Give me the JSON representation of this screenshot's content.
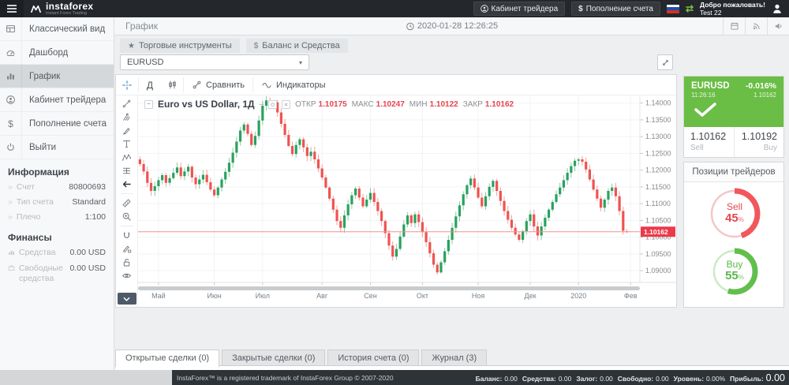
{
  "topbar": {
    "brand": "instaforex",
    "brand_sub": "Instant Forex Trading",
    "cabinet_button": "Кабинет трейдера",
    "deposit_button": "Пополнение счета",
    "deposit_symbol": "$",
    "welcome_line1": "Добро пожаловать!",
    "welcome_line2": "Test 22"
  },
  "sidebar": {
    "items": [
      {
        "label": "Классический вид",
        "icon": "classic-view-icon",
        "active": false
      },
      {
        "label": "Дашборд",
        "icon": "dashboard-icon",
        "active": false
      },
      {
        "label": "График",
        "icon": "chart-icon",
        "active": true
      },
      {
        "label": "Кабинет трейдера",
        "icon": "trader-cabinet-icon",
        "active": false
      },
      {
        "label": "Пополнение счета",
        "icon": "deposit-icon",
        "active": false
      },
      {
        "label": "Выйти",
        "icon": "logout-icon",
        "active": false
      }
    ],
    "info_title": "Информация",
    "info_rows": [
      {
        "label": "Счет",
        "value": "80800693"
      },
      {
        "label": "Тип счета",
        "value": "Standard"
      },
      {
        "label": "Плечо",
        "value": "1:100"
      }
    ],
    "finance_title": "Финансы",
    "finance_rows": [
      {
        "label": "Средства",
        "value": "0.00 USD"
      },
      {
        "label": "Свободные средства",
        "value": "0.00 USD"
      }
    ]
  },
  "main": {
    "page_title": "График",
    "datetime": "2020-01-28 12:26:25",
    "instruments_button": "Торговые инструменты",
    "instruments_glyph": "★",
    "balance_button": "Баланс и Средства",
    "balance_glyph": "$",
    "symbol_select": "EURUSD",
    "select_caret": "▾",
    "chart_toolbar": {
      "interval": "Д",
      "compare": "Сравнить",
      "indicators": "Индикаторы"
    },
    "legend": {
      "collapse_glyph": "−",
      "title": "Euro vs US Dollar, 1Д",
      "dash": "–",
      "open_label": "ОТКР",
      "open": "1.10175",
      "high_label": "МАКС",
      "high": "1.10247",
      "low_label": "МИН",
      "low": "1.10122",
      "close_label": "ЗАКР",
      "close": "1.10162"
    },
    "tabs": [
      {
        "label": "Открытые сделки (0)",
        "active": true
      },
      {
        "label": "Закрытые сделки (0)",
        "active": false
      },
      {
        "label": "История счета (0)",
        "active": false
      },
      {
        "label": "Журнал (3)",
        "active": false
      }
    ]
  },
  "quote": {
    "symbol": "EURUSD",
    "change": "-0.016%",
    "time": "11:26:16",
    "price": "1.10162",
    "sell_price": "1.10162",
    "sell_label": "Sell",
    "buy_price": "1.10192",
    "buy_label": "Buy"
  },
  "positions": {
    "title": "Позиции трейдеров",
    "sell_label": "Sell",
    "sell_pct": 45,
    "buy_label": "Buy",
    "buy_pct": 55,
    "pct_symbol": "%",
    "sell_color": "#f1575c",
    "sell_track": "#f5c6c7",
    "buy_color": "#62bf4e",
    "buy_track": "#cdeac2"
  },
  "statusbar": {
    "copyright": "InstaForex™ is a registered trademark of InstaForex Group © 2007-2020",
    "items": [
      {
        "label": "Баланс:",
        "value": "0.00"
      },
      {
        "label": "Средства:",
        "value": "0.00"
      },
      {
        "label": "Залог:",
        "value": "0.00"
      },
      {
        "label": "Свободно:",
        "value": "0.00"
      },
      {
        "label": "Уровень:",
        "value": "0.00%"
      },
      {
        "label": "Прибыль:",
        "value": "0.00"
      }
    ]
  },
  "chart_data": {
    "type": "candlestick",
    "title": "Euro vs US Dollar, 1Д",
    "symbol": "EURUSD",
    "interval": "1Д",
    "ohlc_legend": {
      "open": 1.10175,
      "high": 1.10247,
      "low": 1.10122,
      "close": 1.10162
    },
    "last_price": 1.10162,
    "change_pct": "-0.016%",
    "ylim": [
      1.0865,
      1.1425
    ],
    "y_ticks": [
      1.14,
      1.135,
      1.13,
      1.125,
      1.12,
      1.115,
      1.11,
      1.105,
      1.1,
      1.095,
      1.09
    ],
    "x_labels": [
      "Май",
      "Июн",
      "Июл",
      "Авг",
      "Сен",
      "Окт",
      "Ноя",
      "Дек",
      "2020",
      "Фев"
    ],
    "x_tick_slots": [
      5,
      20,
      33,
      49,
      62,
      76,
      91,
      105,
      118,
      132
    ],
    "total_slots": 135,
    "first_open": 1.1232,
    "closes": [
      1.1218,
      1.1196,
      1.1162,
      1.1138,
      1.1152,
      1.117,
      1.1185,
      1.1162,
      1.1176,
      1.1192,
      1.1208,
      1.1182,
      1.1196,
      1.121,
      1.1178,
      1.1158,
      1.1172,
      1.1186,
      1.1164,
      1.1142,
      1.1125,
      1.1148,
      1.1172,
      1.1195,
      1.1222,
      1.1252,
      1.1285,
      1.1318,
      1.1336,
      1.1308,
      1.1275,
      1.1302,
      1.1348,
      1.1392,
      1.1408,
      1.1396,
      1.1402,
      1.1372,
      1.1338,
      1.1305,
      1.1272,
      1.1248,
      1.1275,
      1.1292,
      1.1268,
      1.1242,
      1.1255,
      1.1232,
      1.1205,
      1.1178,
      1.1148,
      1.1115,
      1.1082,
      1.1048,
      1.1028,
      1.1065,
      1.1098,
      1.1125,
      1.1145,
      1.1118,
      1.1092,
      1.1112,
      1.1132,
      1.1105,
      1.1078,
      1.1048,
      1.1012,
      1.0975,
      1.0942,
      1.0965,
      1.1002,
      1.1038,
      1.1065,
      1.1042,
      1.1068,
      1.1045,
      1.1015,
      1.0985,
      1.0952,
      1.0918,
      1.0895,
      1.0925,
      1.0958,
      1.0992,
      1.1028,
      1.1062,
      1.1095,
      1.1128,
      1.1155,
      1.1175,
      1.1148,
      1.1118,
      1.1092,
      1.1122,
      1.115,
      1.1168,
      1.1138,
      1.1108,
      1.1078,
      1.1052,
      1.1028,
      1.1008,
      1.0992,
      1.1018,
      1.1048,
      1.1068,
      1.1032,
      1.1005,
      1.1032,
      1.1058,
      1.1082,
      1.1105,
      1.1128,
      1.1148,
      1.117,
      1.1192,
      1.1212,
      1.1228,
      1.1232,
      1.1225,
      1.1202,
      1.1172,
      1.1142,
      1.1115,
      1.1088,
      1.1112,
      1.1138,
      1.1148,
      1.1122,
      1.1078,
      1.1019,
      1.10162
    ],
    "up_color": "#2aa15f",
    "down_color": "#ef5350",
    "price_line_color": "#f58f8f",
    "price_label_color": "#eb3a4c",
    "grid": true,
    "legend_position": "top-left"
  }
}
